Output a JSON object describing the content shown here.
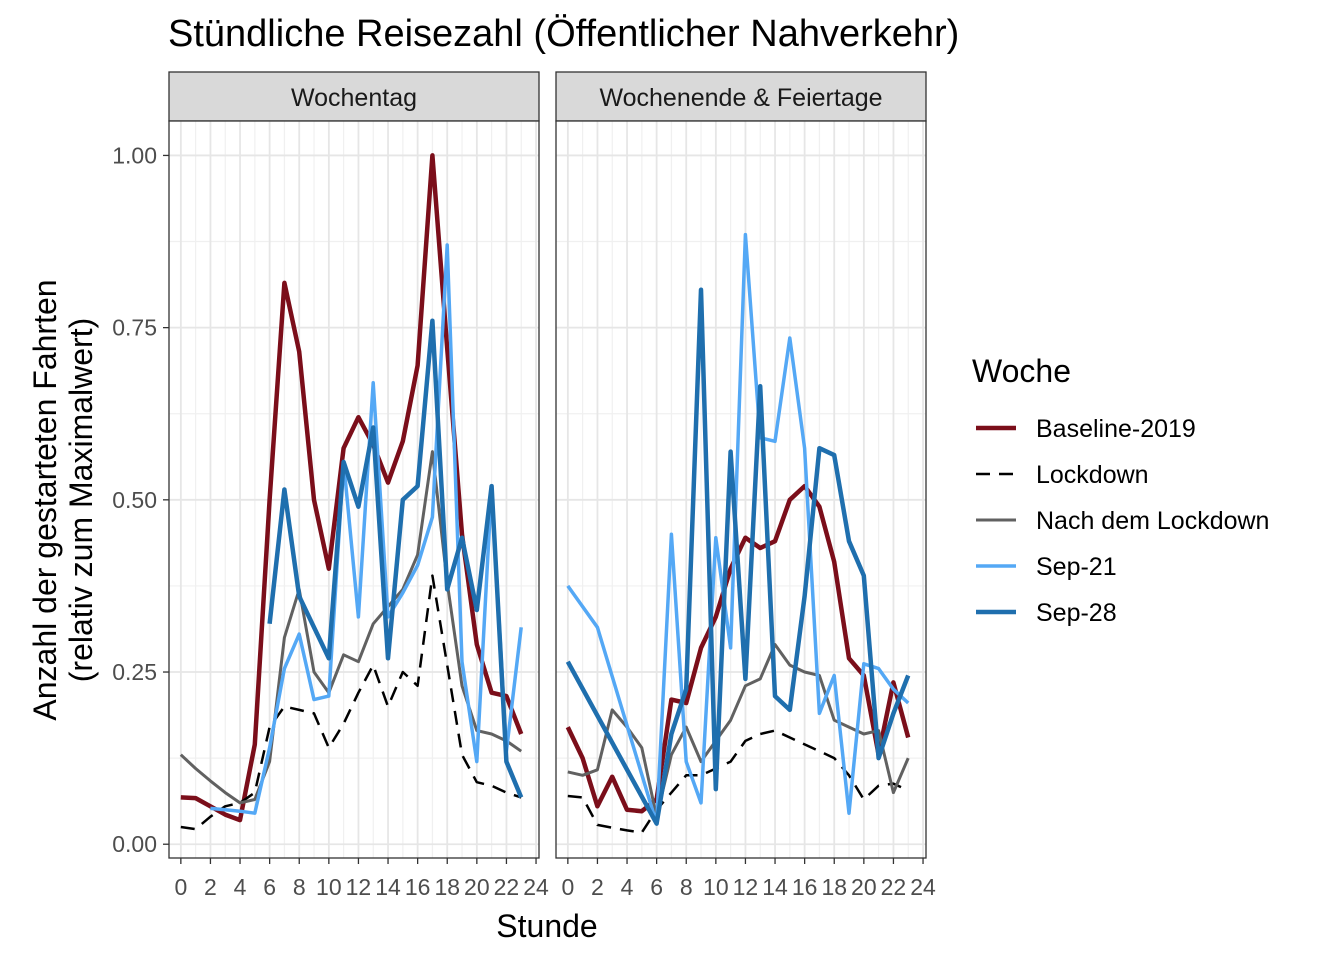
{
  "chart_data": {
    "type": "line",
    "title": "Stündliche Reisezahl (Öffentlicher Nahverkehr)",
    "xlabel": "Stunde",
    "ylabel_lines": [
      "Anzahl der gestarteten Fahrten",
      "(relativ zum Maximalwert)"
    ],
    "xlim": [
      -0.8,
      24.2
    ],
    "ylim": [
      -0.02,
      1.05
    ],
    "x_ticks": [
      0,
      2,
      4,
      6,
      8,
      10,
      12,
      14,
      16,
      18,
      20,
      22,
      24
    ],
    "y_ticks": [
      0,
      0.25,
      0.5,
      0.75,
      1.0
    ],
    "y_tick_labels": [
      "0.00",
      "0.25",
      "0.50",
      "0.75",
      "1.00"
    ],
    "grid": true,
    "legend": {
      "title": "Woche",
      "position": "right",
      "entries": [
        "Baseline-2019",
        "Lockdown",
        "Nach dem Lockdown",
        "Sep-21",
        "Sep-28"
      ]
    },
    "series_styles": [
      {
        "name": "Baseline-2019",
        "color": "#7b0e1a",
        "width": 4.5,
        "dash": ""
      },
      {
        "name": "Lockdown",
        "color": "#000000",
        "width": 2.5,
        "dash": "14,9"
      },
      {
        "name": "Nach dem Lockdown",
        "color": "#616161",
        "width": 3,
        "dash": ""
      },
      {
        "name": "Sep-21",
        "color": "#54a8f5",
        "width": 3.5,
        "dash": ""
      },
      {
        "name": "Sep-28",
        "color": "#1f6fae",
        "width": 4.5,
        "dash": ""
      }
    ],
    "panels": [
      {
        "label": "Wochentag",
        "series": [
          {
            "name": "Baseline-2019",
            "x": [
              0,
              1,
              2,
              3,
              4,
              5,
              6,
              7,
              8,
              9,
              10,
              11,
              12,
              13,
              14,
              15,
              16,
              17,
              18,
              19,
              20,
              21,
              22,
              23
            ],
            "values": [
              0.068,
              0.067,
              0.055,
              0.043,
              0.035,
              0.145,
              0.5,
              0.815,
              0.715,
              0.5,
              0.4,
              0.575,
              0.62,
              0.58,
              0.525,
              0.585,
              0.695,
              1.0,
              0.72,
              0.45,
              0.29,
              0.22,
              0.215,
              0.16
            ]
          },
          {
            "name": "Lockdown",
            "x": [
              0,
              1,
              2,
              3,
              4,
              5,
              6,
              7,
              8,
              9,
              10,
              11,
              12,
              13,
              14,
              15,
              16,
              17,
              18,
              19,
              20,
              21,
              22,
              23
            ],
            "values": [
              0.025,
              0.022,
              0.04,
              0.055,
              0.06,
              0.075,
              0.17,
              0.2,
              0.195,
              0.19,
              0.14,
              0.175,
              0.22,
              0.26,
              0.2,
              0.25,
              0.23,
              0.39,
              0.26,
              0.13,
              0.09,
              0.085,
              0.075,
              0.068
            ]
          },
          {
            "name": "Nach dem Lockdown",
            "x": [
              0,
              1,
              2,
              3,
              4,
              5,
              6,
              7,
              8,
              9,
              10,
              11,
              12,
              13,
              14,
              15,
              16,
              17,
              18,
              19,
              20,
              21,
              22,
              23
            ],
            "values": [
              0.13,
              0.11,
              0.092,
              0.075,
              0.06,
              0.065,
              0.12,
              0.3,
              0.37,
              0.25,
              0.22,
              0.275,
              0.265,
              0.32,
              0.345,
              0.37,
              0.42,
              0.57,
              0.38,
              0.23,
              0.165,
              0.16,
              0.15,
              0.135
            ]
          },
          {
            "name": "Sep-21",
            "x": [
              2,
              3,
              4,
              5,
              6,
              7,
              8,
              9,
              10,
              11,
              12,
              13,
              14,
              15,
              16,
              17,
              18,
              19,
              20,
              21,
              22,
              23
            ],
            "values": [
              0.052,
              0.05,
              0.048,
              0.045,
              0.14,
              0.255,
              0.305,
              0.21,
              0.215,
              0.555,
              0.33,
              0.67,
              0.33,
              0.365,
              0.405,
              0.475,
              0.87,
              0.265,
              0.12,
              0.52,
              0.135,
              0.315
            ]
          },
          {
            "name": "Sep-28",
            "x": [
              6,
              7,
              8,
              9,
              10,
              11,
              12,
              13,
              14,
              15,
              16,
              17,
              18,
              19,
              20,
              21,
              22,
              23
            ],
            "values": [
              0.32,
              0.515,
              0.36,
              0.315,
              0.27,
              0.555,
              0.49,
              0.605,
              0.27,
              0.5,
              0.52,
              0.76,
              0.37,
              0.445,
              0.34,
              0.52,
              0.12,
              0.068
            ]
          }
        ]
      },
      {
        "label": "Wochenende & Feiertage",
        "series": [
          {
            "name": "Baseline-2019",
            "x": [
              0,
              1,
              2,
              3,
              4,
              5,
              6,
              7,
              8,
              9,
              10,
              11,
              12,
              13,
              14,
              15,
              16,
              17,
              18,
              19,
              20,
              21,
              22,
              23
            ],
            "values": [
              0.17,
              0.125,
              0.055,
              0.098,
              0.05,
              0.048,
              0.065,
              0.21,
              0.205,
              0.285,
              0.33,
              0.4,
              0.445,
              0.43,
              0.44,
              0.5,
              0.52,
              0.49,
              0.41,
              0.27,
              0.245,
              0.13,
              0.235,
              0.155
            ]
          },
          {
            "name": "Lockdown",
            "x": [
              0,
              1,
              2,
              3,
              4,
              5,
              6,
              7,
              8,
              9,
              10,
              11,
              12,
              13,
              14,
              15,
              16,
              17,
              18,
              19,
              20,
              21,
              22,
              23
            ],
            "values": [
              0.07,
              0.068,
              0.028,
              0.024,
              0.02,
              0.017,
              0.05,
              0.075,
              0.1,
              0.1,
              0.11,
              0.12,
              0.15,
              0.16,
              0.165,
              0.155,
              0.145,
              0.135,
              0.125,
              0.1,
              0.065,
              0.085,
              0.088,
              0.078
            ]
          },
          {
            "name": "Nach dem Lockdown",
            "x": [
              0,
              1,
              2,
              3,
              4,
              5,
              6,
              7,
              8,
              9,
              10,
              11,
              12,
              13,
              14,
              15,
              16,
              17,
              18,
              19,
              20,
              21,
              22,
              23
            ],
            "values": [
              0.105,
              0.1,
              0.108,
              0.195,
              0.17,
              0.14,
              0.04,
              0.13,
              0.17,
              0.12,
              0.15,
              0.18,
              0.23,
              0.24,
              0.29,
              0.26,
              0.25,
              0.245,
              0.18,
              0.17,
              0.16,
              0.165,
              0.075,
              0.125
            ]
          },
          {
            "name": "Sep-21",
            "x": [
              0,
              2,
              6,
              7,
              8,
              9,
              10,
              11,
              12,
              13,
              14,
              15,
              16,
              17,
              18,
              19,
              20,
              21,
              22,
              23
            ],
            "values": [
              0.375,
              0.315,
              0.03,
              0.45,
              0.12,
              0.06,
              0.445,
              0.285,
              0.885,
              0.59,
              0.585,
              0.735,
              0.575,
              0.19,
              0.245,
              0.045,
              0.262,
              0.255,
              0.225,
              0.205
            ]
          },
          {
            "name": "Sep-28",
            "x": [
              0,
              6,
              7,
              8,
              9,
              10,
              11,
              12,
              13,
              14,
              15,
              16,
              17,
              18,
              19,
              20,
              21,
              22,
              23
            ],
            "values": [
              0.265,
              0.03,
              0.16,
              0.225,
              0.805,
              0.08,
              0.57,
              0.24,
              0.665,
              0.215,
              0.195,
              0.36,
              0.575,
              0.565,
              0.44,
              0.39,
              0.125,
              0.19,
              0.245
            ]
          }
        ]
      }
    ]
  }
}
